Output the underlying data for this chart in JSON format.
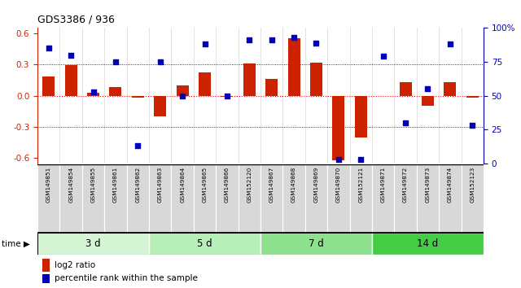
{
  "title": "GDS3386 / 936",
  "samples": [
    "GSM149851",
    "GSM149854",
    "GSM149855",
    "GSM149861",
    "GSM149862",
    "GSM149863",
    "GSM149864",
    "GSM149865",
    "GSM149866",
    "GSM152120",
    "GSM149867",
    "GSM149868",
    "GSM149869",
    "GSM149870",
    "GSM152121",
    "GSM149871",
    "GSM149872",
    "GSM149873",
    "GSM149874",
    "GSM152123"
  ],
  "log2_ratio": [
    0.18,
    0.29,
    0.03,
    0.08,
    -0.02,
    -0.2,
    0.1,
    0.22,
    -0.01,
    0.31,
    0.16,
    0.55,
    0.32,
    -0.62,
    -0.4,
    0.0,
    0.13,
    -0.1,
    0.13,
    -0.02
  ],
  "percentile_rank": [
    85,
    80,
    53,
    75,
    13,
    75,
    50,
    88,
    50,
    91,
    91,
    93,
    89,
    3,
    3,
    79,
    30,
    55,
    88,
    28
  ],
  "groups": [
    {
      "label": "3 d",
      "start": 0,
      "end": 5,
      "color": "#d5f5d5"
    },
    {
      "label": "5 d",
      "start": 5,
      "end": 10,
      "color": "#b8eeb8"
    },
    {
      "label": "7 d",
      "start": 10,
      "end": 15,
      "color": "#8de08d"
    },
    {
      "label": "14 d",
      "start": 15,
      "end": 20,
      "color": "#44cc44"
    }
  ],
  "ylim_left": [
    -0.65,
    0.65
  ],
  "ylim_right": [
    0,
    100
  ],
  "yticks_left": [
    -0.6,
    -0.3,
    0.0,
    0.3,
    0.6
  ],
  "yticks_right": [
    0,
    25,
    50,
    75,
    100
  ],
  "bar_color": "#cc2200",
  "dot_color": "#0000bb",
  "bg_color": "#ffffff",
  "zero_line_color": "#ff0000",
  "legend_log2": "log2 ratio",
  "legend_pct": "percentile rank within the sample",
  "cell_color": "#d8d8d8",
  "cell_border": "#ffffff"
}
